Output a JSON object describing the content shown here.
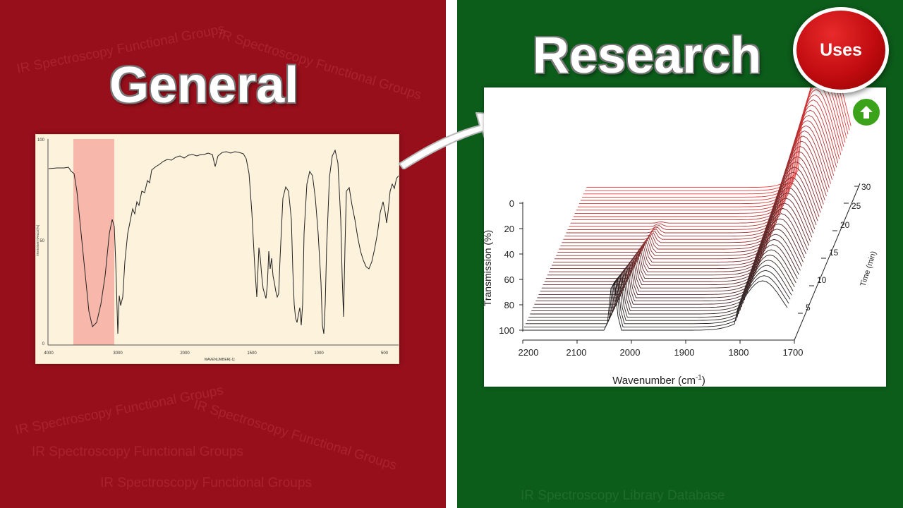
{
  "left": {
    "heading": "General",
    "watermark": "IR Spectroscopy Functional Groups",
    "spectrum": {
      "y_ticks": [
        "100",
        "50",
        "0"
      ],
      "x_ticks": [
        "4000",
        "3000",
        "2000",
        "1500",
        "1000",
        "500"
      ],
      "ylabel": "TRANSMITTANCE[%]",
      "xlabel": "WAVENUMBER[-1]",
      "highlight_color": "#f4a39b"
    }
  },
  "right": {
    "heading": "Research",
    "watermark": "IR Spectroscopy Library Database",
    "uses_button": "Uses",
    "chart": {
      "xlabel": "Wavenumber (cm",
      "xlabel_sup": "-1",
      "xlabel_end": ")",
      "ylabel": "Transmission (%)",
      "zlabel": "Time (min)",
      "x_ticks": [
        "2200",
        "2100",
        "2000",
        "1900",
        "1800",
        "1700"
      ],
      "y_ticks": [
        "0",
        "20",
        "40",
        "60",
        "80",
        "100"
      ],
      "z_ticks": [
        "5",
        "10",
        "15",
        "20",
        "25",
        "30"
      ]
    }
  },
  "colors": {
    "left_bg": "#960f1b",
    "right_bg": "#0c5c1a",
    "uses": "#c10c10",
    "up": "#3aa31a"
  }
}
